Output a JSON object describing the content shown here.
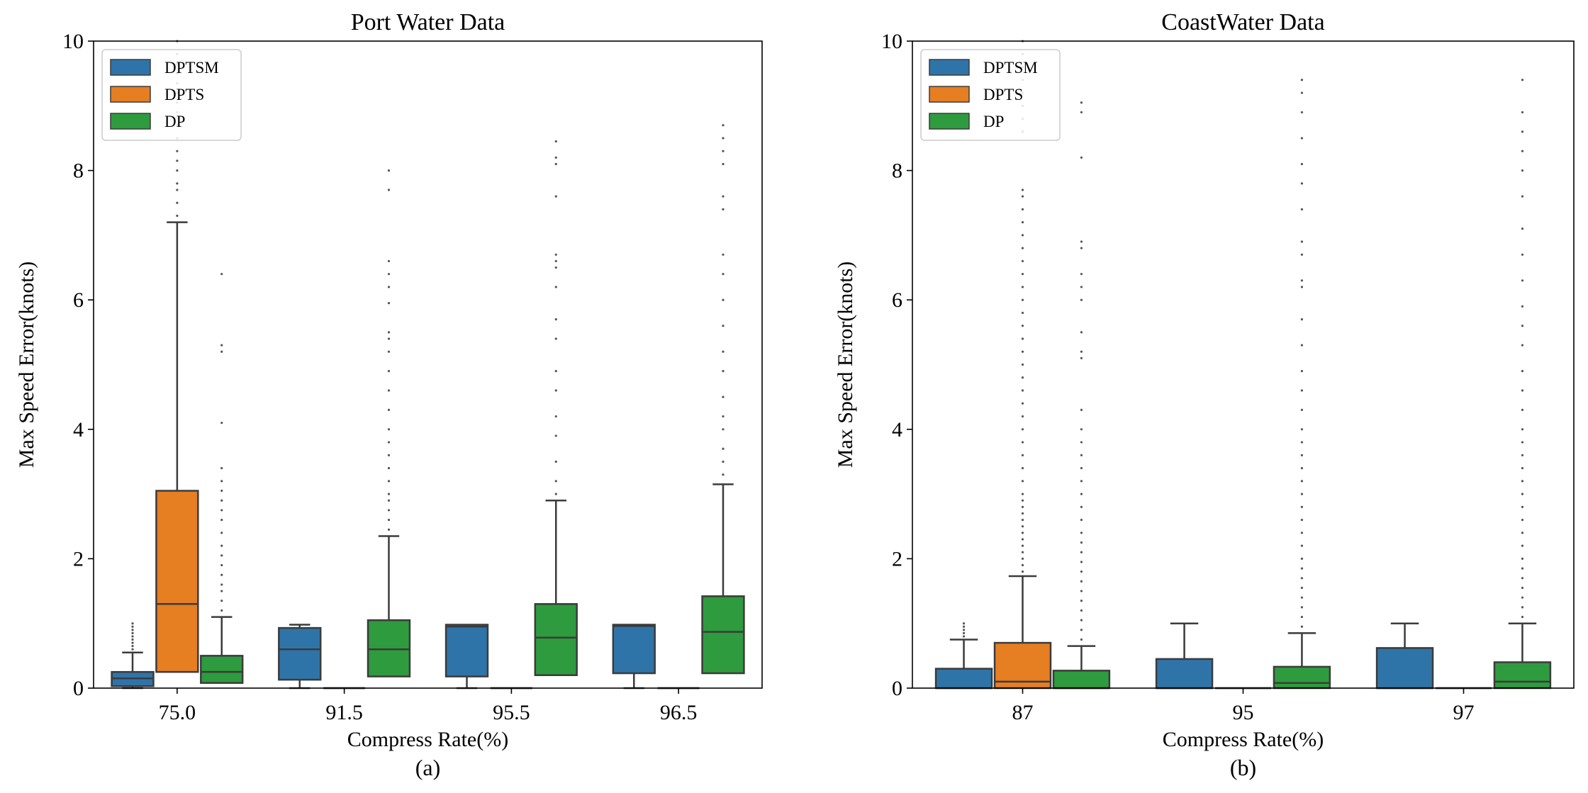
{
  "colors": {
    "DPTSM": "#2f74a9",
    "DPTS": "#e67e22",
    "DP": "#2e9b3e",
    "box_edge": "#3b3b3b",
    "outlier": "#555555"
  },
  "chart_data": [
    {
      "type": "box",
      "title": "Port Water Data",
      "xlabel": "Compress Rate(%)",
      "ylabel": "Max Speed Error(knots)",
      "caption": "(a)",
      "categories": [
        "75.0",
        "91.5",
        "95.5",
        "96.5"
      ],
      "ylim": [
        0,
        10
      ],
      "yticks": [
        0,
        2,
        4,
        6,
        8,
        10
      ],
      "legend": {
        "placement": "top-left",
        "entries": [
          "DPTSM",
          "DPTS",
          "DP"
        ]
      },
      "series": [
        {
          "name": "DPTSM",
          "boxes": [
            {
              "whislo": 0,
              "q1": 0.03,
              "med": 0.15,
              "q3": 0.25,
              "whishi": 0.55,
              "fliers": [
                1.0,
                0.95,
                0.9,
                0.85,
                0.8,
                0.75,
                0.7,
                0.65,
                0.6
              ]
            },
            {
              "whislo": 0,
              "q1": 0.13,
              "med": 0.6,
              "q3": 0.93,
              "whishi": 0.98,
              "fliers": []
            },
            {
              "whislo": 0,
              "q1": 0.18,
              "med": 0.95,
              "q3": 0.98,
              "whishi": 0.98,
              "fliers": []
            },
            {
              "whislo": 0,
              "q1": 0.23,
              "med": 0.96,
              "q3": 0.98,
              "whishi": 0.98,
              "fliers": []
            }
          ]
        },
        {
          "name": "DPTS",
          "boxes": [
            {
              "whislo": 0.25,
              "q1": 0.25,
              "med": 1.3,
              "q3": 3.05,
              "whishi": 7.2,
              "fliers": [
                7.3,
                7.5,
                7.7,
                7.8,
                8.0,
                8.15,
                8.3,
                8.5,
                8.7,
                8.9,
                9.05,
                9.2,
                9.35,
                9.5,
                9.65,
                9.8,
                10.0
              ]
            },
            {
              "whislo": 0,
              "q1": 0,
              "med": 0,
              "q3": 0,
              "whishi": 0,
              "fliers": []
            },
            {
              "whislo": 0,
              "q1": 0,
              "med": 0,
              "q3": 0,
              "whishi": 0,
              "fliers": []
            },
            {
              "whislo": 0,
              "q1": 0,
              "med": 0,
              "q3": 0,
              "whishi": 0,
              "fliers": []
            }
          ]
        },
        {
          "name": "DP",
          "boxes": [
            {
              "whislo": 0.08,
              "q1": 0.08,
              "med": 0.25,
              "q3": 0.5,
              "whishi": 1.1,
              "fliers": [
                1.2,
                1.35,
                1.5,
                1.6,
                1.75,
                1.9,
                2.05,
                2.2,
                2.4,
                2.6,
                2.75,
                2.9,
                3.05,
                3.2,
                3.4,
                4.1,
                5.2,
                5.3,
                6.4
              ]
            },
            {
              "whislo": 0.18,
              "q1": 0.18,
              "med": 0.6,
              "q3": 1.05,
              "whishi": 2.35,
              "fliers": [
                2.45,
                2.6,
                2.75,
                2.9,
                3.0,
                3.2,
                3.4,
                3.6,
                3.8,
                4.0,
                4.3,
                4.6,
                4.9,
                5.2,
                5.4,
                5.5,
                5.95,
                6.2,
                6.4,
                6.6,
                7.7,
                8.0
              ]
            },
            {
              "whislo": 0.2,
              "q1": 0.2,
              "med": 0.78,
              "q3": 1.3,
              "whishi": 2.9,
              "fliers": [
                3.0,
                3.2,
                3.5,
                3.9,
                4.2,
                4.6,
                4.9,
                5.4,
                5.7,
                6.2,
                6.5,
                6.6,
                6.7,
                7.6,
                8.1,
                8.2,
                8.45
              ]
            },
            {
              "whislo": 0.23,
              "q1": 0.23,
              "med": 0.87,
              "q3": 1.42,
              "whishi": 3.15,
              "fliers": [
                3.3,
                3.5,
                3.7,
                4.0,
                4.2,
                4.5,
                4.9,
                5.2,
                5.6,
                6.0,
                6.4,
                6.7,
                7.4,
                7.6,
                8.1,
                8.3,
                8.5,
                8.7
              ]
            }
          ]
        }
      ]
    },
    {
      "type": "box",
      "title": "CoastWater Data",
      "xlabel": "Compress Rate(%)",
      "ylabel": "Max Speed Error(knots)",
      "caption": "(b)",
      "categories": [
        "87",
        "95",
        "97"
      ],
      "ylim": [
        0,
        10
      ],
      "yticks": [
        0,
        2,
        4,
        6,
        8,
        10
      ],
      "legend": {
        "placement": "top-left",
        "entries": [
          "DPTSM",
          "DPTS",
          "DP"
        ]
      },
      "series": [
        {
          "name": "DPTSM",
          "boxes": [
            {
              "whislo": 0,
              "q1": 0,
              "med": 0,
              "q3": 0.3,
              "whishi": 0.75,
              "fliers": [
                0.8,
                0.85,
                0.9,
                0.95,
                1.0
              ]
            },
            {
              "whislo": 0,
              "q1": 0,
              "med": 0,
              "q3": 0.45,
              "whishi": 1.0,
              "fliers": []
            },
            {
              "whislo": 0,
              "q1": 0,
              "med": 0,
              "q3": 0.62,
              "whishi": 1.0,
              "fliers": []
            }
          ]
        },
        {
          "name": "DPTS",
          "boxes": [
            {
              "whislo": 0,
              "q1": 0,
              "med": 0.1,
              "q3": 0.7,
              "whishi": 1.73,
              "fliers": [
                1.8,
                1.9,
                2.0,
                2.1,
                2.2,
                2.3,
                2.4,
                2.5,
                2.6,
                2.7,
                2.8,
                2.9,
                3.0,
                3.2,
                3.4,
                3.6,
                3.8,
                4.0,
                4.2,
                4.4,
                4.6,
                4.8,
                5.0,
                5.2,
                5.4,
                5.6,
                5.8,
                6.0,
                6.2,
                6.4,
                6.6,
                6.8,
                7.0,
                7.2,
                7.4,
                7.6,
                7.7,
                8.6,
                8.8,
                9.0,
                9.2,
                9.4,
                9.6,
                9.8,
                10.0
              ]
            },
            {
              "whislo": 0,
              "q1": 0,
              "med": 0,
              "q3": 0,
              "whishi": 0,
              "fliers": []
            },
            {
              "whislo": 0,
              "q1": 0,
              "med": 0,
              "q3": 0,
              "whishi": 0,
              "fliers": []
            }
          ]
        },
        {
          "name": "DP",
          "boxes": [
            {
              "whislo": 0,
              "q1": 0,
              "med": 0,
              "q3": 0.27,
              "whishi": 0.65,
              "fliers": [
                0.75,
                0.9,
                1.05,
                1.2,
                1.35,
                1.5,
                1.65,
                1.8,
                1.95,
                2.1,
                2.25,
                2.4,
                2.6,
                2.8,
                3.0,
                3.2,
                3.4,
                3.6,
                3.8,
                4.0,
                4.3,
                5.1,
                5.2,
                5.5,
                6.0,
                6.2,
                6.4,
                6.8,
                6.9,
                8.2,
                8.9,
                9.05
              ]
            },
            {
              "whislo": 0,
              "q1": 0,
              "med": 0.08,
              "q3": 0.33,
              "whishi": 0.85,
              "fliers": [
                0.95,
                1.1,
                1.25,
                1.4,
                1.55,
                1.7,
                1.85,
                2.0,
                2.2,
                2.4,
                2.6,
                2.8,
                3.0,
                3.2,
                3.4,
                3.6,
                3.8,
                4.0,
                4.3,
                4.6,
                4.9,
                5.3,
                5.7,
                6.2,
                6.3,
                6.7,
                6.9,
                7.4,
                7.8,
                8.1,
                8.5,
                8.9,
                9.2,
                9.4
              ]
            },
            {
              "whislo": 0,
              "q1": 0,
              "med": 0.1,
              "q3": 0.4,
              "whishi": 1.0,
              "fliers": [
                1.1,
                1.25,
                1.4,
                1.55,
                1.7,
                1.85,
                2.0,
                2.2,
                2.4,
                2.6,
                2.8,
                3.0,
                3.2,
                3.4,
                3.6,
                3.8,
                4.0,
                4.3,
                4.6,
                4.9,
                5.3,
                5.6,
                5.9,
                6.3,
                6.7,
                7.1,
                7.6,
                8.0,
                8.3,
                8.6,
                8.9,
                9.4
              ]
            }
          ]
        }
      ]
    }
  ]
}
